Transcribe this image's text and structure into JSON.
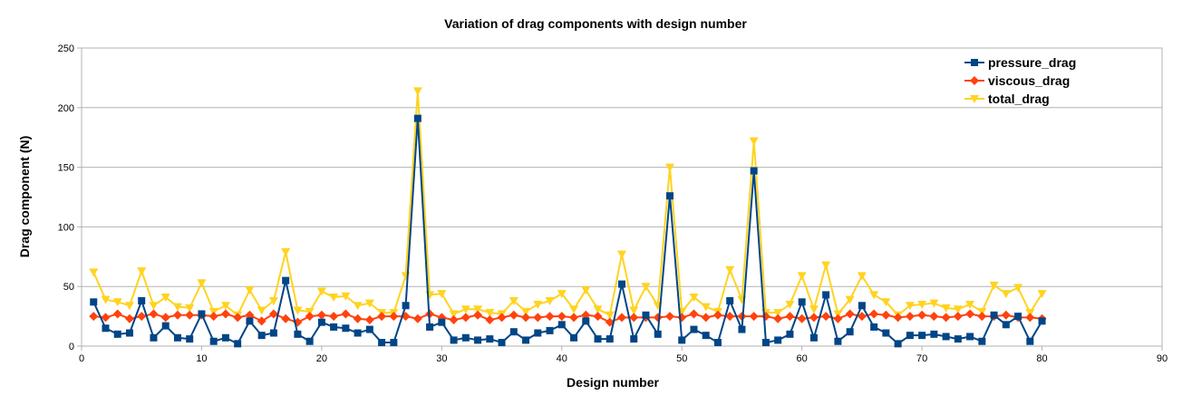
{
  "chart_data": {
    "type": "line",
    "title": "Variation of drag components with design number",
    "xlabel": "Design number",
    "ylabel": "Drag component (N)",
    "xlim": [
      0,
      90
    ],
    "ylim": [
      0,
      250
    ],
    "xticks": [
      "0",
      "10",
      "20",
      "30",
      "40",
      "50",
      "60",
      "70",
      "80",
      "90"
    ],
    "yticks": [
      "0",
      "50",
      "100",
      "150",
      "200",
      "250"
    ],
    "grid": "horizontal",
    "legend_position": "top-right",
    "x": [
      1,
      2,
      3,
      4,
      5,
      6,
      7,
      8,
      9,
      10,
      11,
      12,
      13,
      14,
      15,
      16,
      17,
      18,
      19,
      20,
      21,
      22,
      23,
      24,
      25,
      26,
      27,
      28,
      29,
      30,
      31,
      32,
      33,
      34,
      35,
      36,
      37,
      38,
      39,
      40,
      41,
      42,
      43,
      44,
      45,
      46,
      47,
      48,
      49,
      50,
      51,
      52,
      53,
      54,
      55,
      56,
      57,
      58,
      59,
      60,
      61,
      62,
      63,
      64,
      65,
      66,
      67,
      68,
      69,
      70,
      71,
      72,
      73,
      74,
      75,
      76,
      77,
      78,
      79,
      80
    ],
    "series": [
      {
        "name": "pressure_drag",
        "color": "#004586",
        "marker": "square",
        "values": [
          37,
          15,
          10,
          11,
          38,
          7,
          17,
          7,
          6,
          27,
          4,
          7,
          2,
          21,
          9,
          11,
          55,
          10,
          4,
          20,
          16,
          15,
          11,
          14,
          3,
          3,
          34,
          191,
          16,
          20,
          5,
          7,
          5,
          6,
          3,
          12,
          5,
          11,
          13,
          18,
          7,
          21,
          6,
          6,
          52,
          6,
          26,
          10,
          126,
          5,
          14,
          9,
          3,
          38,
          14,
          147,
          3,
          5,
          10,
          37,
          7,
          43,
          4,
          12,
          34,
          16,
          11,
          2,
          9,
          9,
          10,
          8,
          6,
          8,
          4,
          26,
          18,
          25,
          4,
          21
        ]
      },
      {
        "name": "viscous_drag",
        "color": "#ff420e",
        "marker": "diamond",
        "values": [
          25,
          24,
          27,
          23,
          25,
          27,
          24,
          26,
          26,
          26,
          25,
          27,
          24,
          26,
          21,
          27,
          23,
          20,
          25,
          26,
          25,
          27,
          23,
          22,
          25,
          25,
          25,
          23,
          27,
          24,
          22,
          24,
          26,
          22,
          24,
          26,
          24,
          24,
          25,
          25,
          24,
          26,
          25,
          20,
          24,
          24,
          24,
          24,
          25,
          24,
          27,
          24,
          26,
          25,
          25,
          25,
          25,
          23,
          25,
          23,
          24,
          25,
          23,
          27,
          25,
          27,
          26,
          24,
          25,
          26,
          25,
          24,
          25,
          27,
          25,
          25,
          26,
          24,
          24,
          23
        ]
      },
      {
        "name": "total_drag",
        "color": "#ffd320",
        "marker": "triangle-down",
        "values": [
          62,
          39,
          37,
          34,
          63,
          34,
          41,
          33,
          32,
          53,
          29,
          34,
          26,
          47,
          30,
          38,
          79,
          30,
          29,
          46,
          41,
          42,
          34,
          36,
          28,
          28,
          59,
          214,
          43,
          44,
          27,
          31,
          31,
          28,
          27,
          38,
          29,
          35,
          38,
          44,
          31,
          47,
          31,
          26,
          77,
          30,
          50,
          34,
          150,
          29,
          41,
          33,
          29,
          64,
          39,
          172,
          28,
          28,
          35,
          59,
          31,
          68,
          27,
          39,
          59,
          43,
          37,
          26,
          34,
          35,
          36,
          32,
          31,
          35,
          29,
          51,
          44,
          49,
          28,
          44
        ]
      }
    ]
  }
}
